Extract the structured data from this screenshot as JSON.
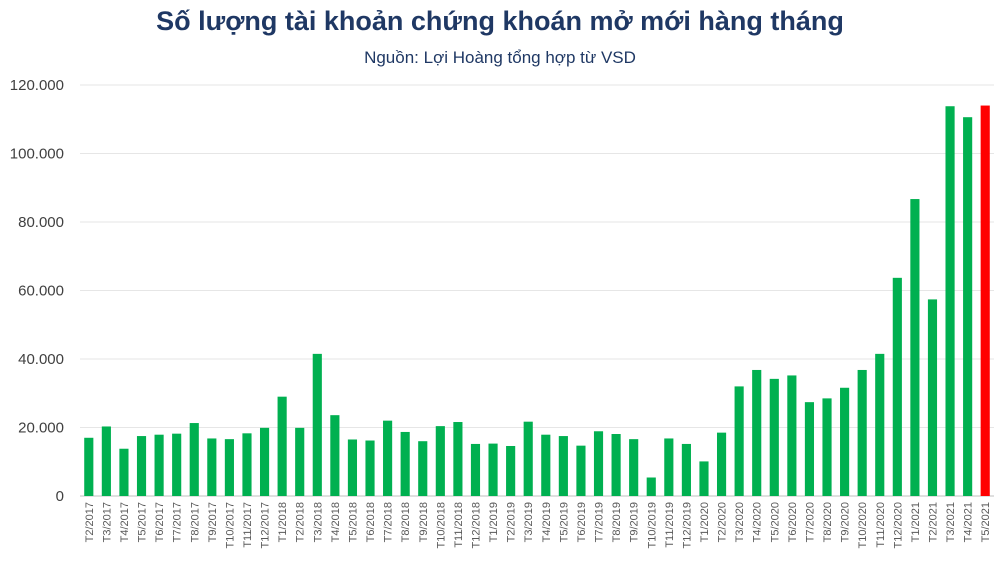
{
  "chart_data": {
    "type": "bar",
    "title": "Số lượng tài khoản chứng khoán mở mới hàng tháng",
    "subtitle": "Nguồn: Lợi Hoàng tổng hợp từ VSD",
    "xlabel": "",
    "ylabel": "",
    "ylim": [
      0,
      120000
    ],
    "y_ticks": [
      0,
      20000,
      40000,
      60000,
      80000,
      100000,
      120000
    ],
    "y_tick_labels": [
      "0",
      "20.000",
      "40.000",
      "60.000",
      "80.000",
      "100.000",
      "120.000"
    ],
    "grid": true,
    "legend": "none",
    "colors": {
      "bar": "#00b050",
      "highlight": "#ff0000",
      "title": "#1f3864",
      "grid": "#e6e6e6"
    },
    "highlight_category": "T5/2021",
    "categories": [
      "T2/2017",
      "T3/2017",
      "T4/2017",
      "T5/2017",
      "T6/2017",
      "T7/2017",
      "T8/2017",
      "T9/2017",
      "T10/2017",
      "T11/2017",
      "T12/2017",
      "T1/2018",
      "T2/2018",
      "T3/2018",
      "T4/2018",
      "T5/2018",
      "T6/2018",
      "T7/2018",
      "T8/2018",
      "T9/2018",
      "T10/2018",
      "T11/2018",
      "T12/2018",
      "T1/2019",
      "T2/2019",
      "T3/2019",
      "T4/2019",
      "T5/2019",
      "T6/2019",
      "T7/2019",
      "T8/2019",
      "T9/2019",
      "T10/2019",
      "T11/2019",
      "T12/2019",
      "T1/2020",
      "T2/2020",
      "T3/2020",
      "T4/2020",
      "T5/2020",
      "T6/2020",
      "T7/2020",
      "T8/2020",
      "T9/2020",
      "T10/2020",
      "T11/2020",
      "T12/2020",
      "T1/2021",
      "T2/2021",
      "T3/2021",
      "T4/2021",
      "T5/2021"
    ],
    "values": [
      17000,
      20300,
      13800,
      17500,
      17900,
      18200,
      21300,
      16800,
      16600,
      18300,
      19900,
      29000,
      19900,
      41500,
      23600,
      16500,
      16200,
      22000,
      18700,
      16000,
      20400,
      21600,
      15200,
      15300,
      14600,
      21700,
      17900,
      17500,
      14700,
      18900,
      18100,
      16600,
      5400,
      16800,
      15200,
      10100,
      18500,
      32000,
      36800,
      34200,
      35200,
      27400,
      28500,
      31600,
      36800,
      41500,
      63700,
      86700,
      57400,
      113800,
      110600,
      114000
    ]
  }
}
